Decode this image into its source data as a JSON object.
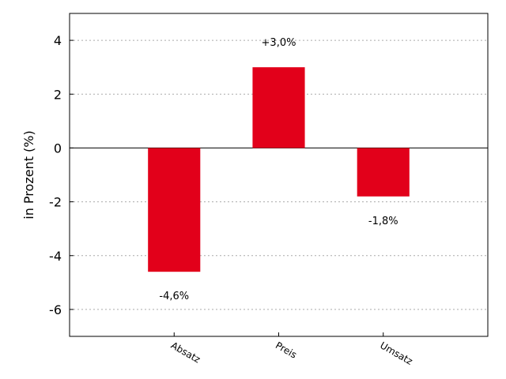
{
  "chart_data": {
    "type": "bar",
    "categories": [
      "Absatz",
      "Preis",
      "Umsatz"
    ],
    "values": [
      -4.6,
      3.0,
      -1.8
    ],
    "data_labels": [
      "-4,6%",
      "+3,0%",
      "-1,8%"
    ],
    "ylabel": "in Prozent (%)",
    "xlabel": "",
    "ylim": [
      -7,
      5
    ],
    "yticks": [
      4,
      2,
      0,
      -2,
      -4,
      -6
    ],
    "grid": true,
    "bar_color": "#e2001a"
  }
}
